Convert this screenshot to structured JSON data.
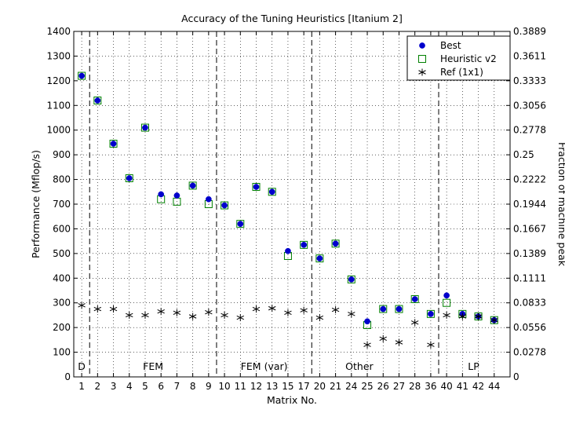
{
  "chart_data": {
    "type": "scatter",
    "title": "Accuracy of the Tuning Heuristics [Itanium 2]",
    "xlabel": "Matrix No.",
    "ylabel": "Performance (Mflop/s)",
    "ylabel_right": "Fraction of machine peak",
    "categories": [
      "1",
      "2",
      "3",
      "4",
      "5",
      "6",
      "7",
      "8",
      "9",
      "10",
      "11",
      "12",
      "13",
      "15",
      "17",
      "20",
      "21",
      "24",
      "25",
      "26",
      "27",
      "28",
      "36",
      "40",
      "41",
      "42",
      "44"
    ],
    "ylim": [
      0,
      1400
    ],
    "yticks": [
      "0",
      "100",
      "200",
      "300",
      "400",
      "500",
      "600",
      "700",
      "800",
      "900",
      "1000",
      "1100",
      "1200",
      "1300",
      "1400"
    ],
    "yticks_right": [
      "0",
      "0.0278",
      "0.0556",
      "0.0833",
      "0.1111",
      "0.1389",
      "0.1667",
      "0.1944",
      "0.2222",
      "0.25",
      "0.2778",
      "0.3056",
      "0.3333",
      "0.3611",
      "0.3889"
    ],
    "grid": true,
    "legend_position": "top-right",
    "series": [
      {
        "name": "Best",
        "marker": "filled-circle",
        "color": "#0000cc",
        "values": [
          1220,
          1120,
          945,
          805,
          1010,
          740,
          735,
          775,
          720,
          695,
          620,
          770,
          750,
          510,
          535,
          480,
          540,
          395,
          225,
          275,
          275,
          315,
          255,
          330,
          255,
          245,
          230
        ]
      },
      {
        "name": "Heuristic v2",
        "marker": "open-square",
        "color": "#008000",
        "values": [
          1220,
          1120,
          945,
          805,
          1010,
          720,
          710,
          775,
          700,
          695,
          620,
          770,
          750,
          490,
          535,
          480,
          540,
          395,
          210,
          275,
          275,
          315,
          255,
          300,
          255,
          245,
          230
        ]
      },
      {
        "name": "Ref (1x1)",
        "marker": "asterisk",
        "color": "#000000",
        "values": [
          290,
          275,
          275,
          250,
          250,
          265,
          260,
          245,
          262,
          250,
          240,
          275,
          278,
          260,
          270,
          240,
          272,
          255,
          130,
          155,
          140,
          220,
          130,
          250,
          245,
          245,
          230
        ]
      }
    ],
    "group_dividers_after_index": [
      0,
      8,
      14,
      22
    ],
    "groups": [
      {
        "label": "D",
        "at_index": 0
      },
      {
        "label": "FEM",
        "at_index": 4.5
      },
      {
        "label": "FEM (var)",
        "at_index": 11.5
      },
      {
        "label": "Other",
        "at_index": 17.5
      },
      {
        "label": "LP",
        "at_index": 24.7
      }
    ]
  }
}
